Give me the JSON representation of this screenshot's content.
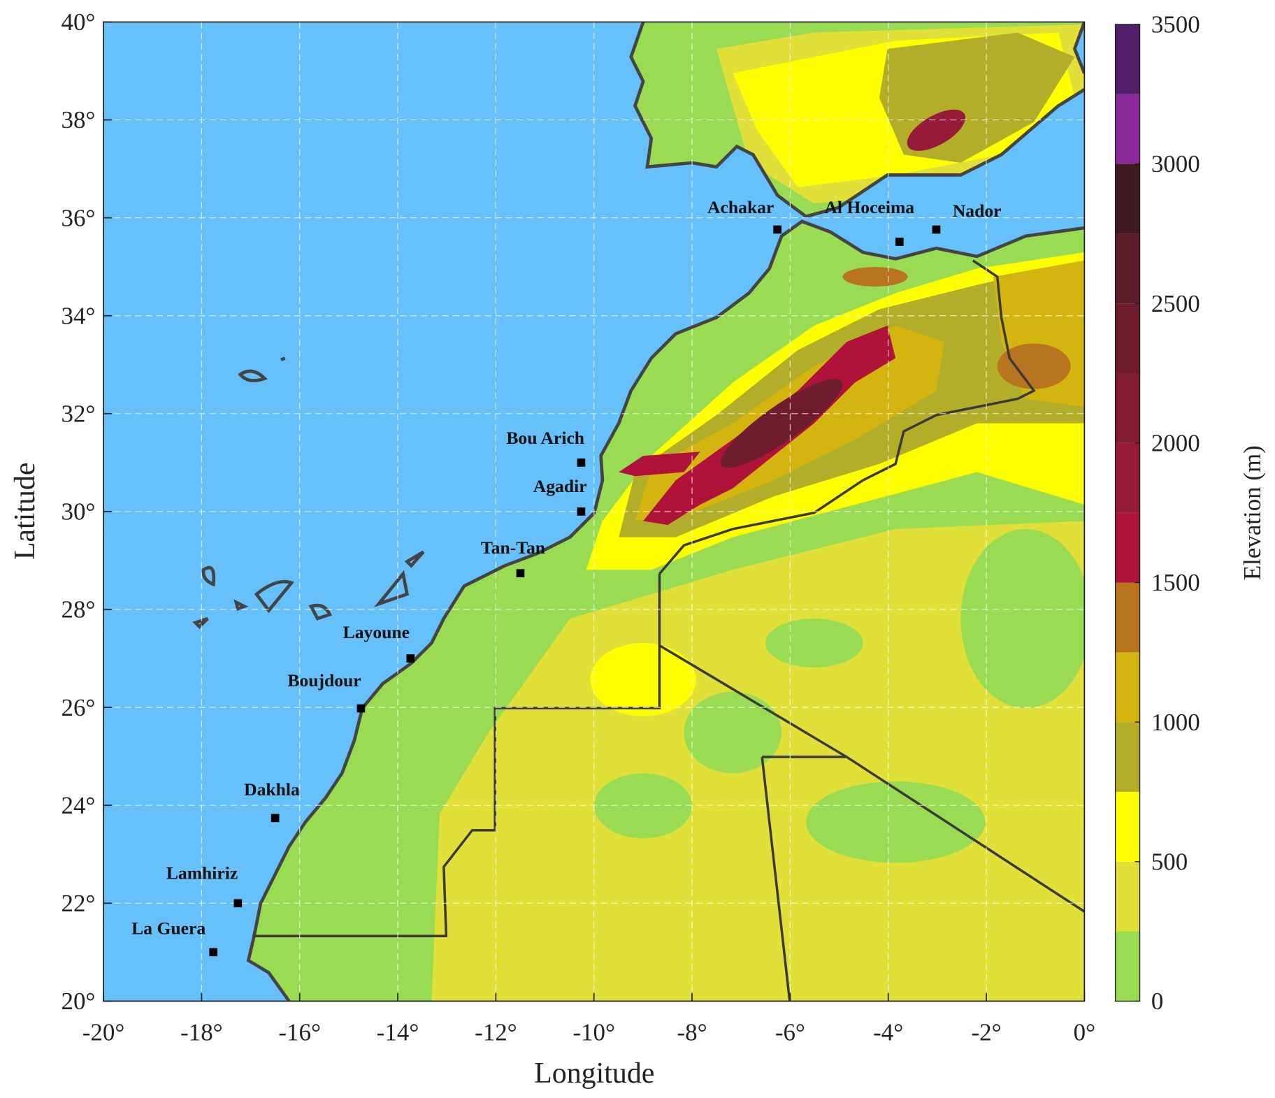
{
  "map": {
    "xlabel": "Longitude",
    "ylabel": "Latitude",
    "xlim": [
      -20,
      0
    ],
    "ylim": [
      20,
      40
    ],
    "xticks": [
      {
        "value": -20,
        "label": "-20°"
      },
      {
        "value": -18,
        "label": "-18°"
      },
      {
        "value": -16,
        "label": "-16°"
      },
      {
        "value": -14,
        "label": "-14°"
      },
      {
        "value": -12,
        "label": "-12°"
      },
      {
        "value": -10,
        "label": "-10°"
      },
      {
        "value": -8,
        "label": "-8°"
      },
      {
        "value": -6,
        "label": "-6°"
      },
      {
        "value": -4,
        "label": "-4°"
      },
      {
        "value": -2,
        "label": "-2°"
      },
      {
        "value": 0,
        "label": "0°"
      }
    ],
    "yticks": [
      {
        "value": 20,
        "label": "20°"
      },
      {
        "value": 22,
        "label": "22°"
      },
      {
        "value": 24,
        "label": "24°"
      },
      {
        "value": 26,
        "label": "26°"
      },
      {
        "value": 28,
        "label": "28°"
      },
      {
        "value": 30,
        "label": "30°"
      },
      {
        "value": 32,
        "label": "32°"
      },
      {
        "value": 34,
        "label": "34°"
      },
      {
        "value": 36,
        "label": "36°"
      },
      {
        "value": 38,
        "label": "38°"
      },
      {
        "value": 40,
        "label": "40°"
      }
    ],
    "grid": true,
    "stations": [
      {
        "name": "Achakar",
        "lon": -6.26,
        "lat": 35.76
      },
      {
        "name": "Al Hoceima",
        "lon": -3.77,
        "lat": 35.51
      },
      {
        "name": "Nador",
        "lon": -3.02,
        "lat": 35.76
      },
      {
        "name": "Bou Arich",
        "lon": -10.26,
        "lat": 31.0
      },
      {
        "name": "Agadir",
        "lon": -10.26,
        "lat": 30.0
      },
      {
        "name": "Tan-Tan",
        "lon": -11.5,
        "lat": 28.74
      },
      {
        "name": "Layoune",
        "lon": -13.74,
        "lat": 27.0
      },
      {
        "name": "Boujdour",
        "lon": -14.75,
        "lat": 25.98
      },
      {
        "name": "Dakhla",
        "lon": -16.5,
        "lat": 23.74
      },
      {
        "name": "Lamhiriz",
        "lon": -17.26,
        "lat": 22.0
      },
      {
        "name": "La Guera",
        "lon": -17.76,
        "lat": 21.0
      }
    ],
    "colorbar": {
      "label": "Elevation (m)",
      "lim": [
        0,
        3500
      ],
      "ticks": [
        0,
        500,
        1000,
        1500,
        2000,
        2500,
        3000,
        3500
      ],
      "levels": [
        0,
        250,
        500,
        750,
        1000,
        1250,
        1500,
        1750,
        2000,
        2250,
        2500,
        2750,
        3000,
        3250,
        3500
      ],
      "colors": [
        "#99db52",
        "#e0e038",
        "#ffff00",
        "#b3ae2a",
        "#d4b40e",
        "#b8741e",
        "#b0133a",
        "#961b39",
        "#821c33",
        "#6f1d2e",
        "#5c1c29",
        "#3f1a20",
        "#8b2a9a",
        "#52206b"
      ]
    }
  }
}
